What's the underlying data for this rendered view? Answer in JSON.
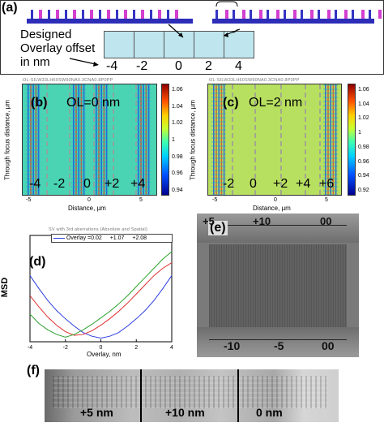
{
  "panel_a": {
    "label": "(a)",
    "caption_lines": [
      "Designed",
      "Overlay offset",
      "in nm"
    ],
    "offsets": [
      "-4",
      "-2",
      "0",
      "2",
      "4"
    ],
    "colors": {
      "bar": "#2d2db8",
      "pillar_blue": "#3434c4",
      "pillar_magenta": "#d43fd0",
      "box": "#bfe6ee"
    }
  },
  "panel_b": {
    "label": "(b)",
    "annotation": "OL=0 nm",
    "header_text": "OL-SILW33LH60SW90NA0.3CNA0.8P0PP",
    "region_labels": [
      "-4",
      "-2",
      "0",
      "+2",
      "+4"
    ],
    "ylabel": "Through focus distance, µm",
    "xlabel": "Distance, µm",
    "xticks": [
      "-5",
      "0",
      "5"
    ],
    "colorbar_ticks": [
      "1.06",
      "1.04",
      "1.02",
      "1",
      "0.98",
      "0.96",
      "0.94"
    ]
  },
  "panel_c": {
    "label": "(c)",
    "annotation": "OL=2 nm",
    "header_text": "OL-SILW33LH60SW90NA0.3CNA0.8P0PP",
    "region_labels": [
      "-2",
      "0",
      "+2",
      "+4",
      "+6"
    ],
    "ylabel": "Through focus distance, µm",
    "xlabel": "Distance, µm",
    "xticks": [
      "-5",
      "0",
      "5"
    ],
    "colorbar_ticks": [
      "1.06",
      "1.04",
      "1.02",
      "1",
      "0.98",
      "0.96",
      "0.94",
      "0.92"
    ]
  },
  "panel_d": {
    "label": "(d)",
    "faint_title": "SV with 3rd aberrations (Absolute and Spatial)"
  },
  "panel_e": {
    "label": "(e)",
    "top_labels": [
      "+5",
      "+10",
      "00"
    ],
    "bottom_labels": [
      "-10",
      "-5",
      "00"
    ]
  },
  "panel_f": {
    "label": "(f)",
    "labels": [
      "+5 nm",
      "+10 nm",
      "0 nm"
    ]
  },
  "chart_data": {
    "type": "line",
    "title": "",
    "xlabel": "Overlay, nm",
    "ylabel": "MSD",
    "xlim": [
      -4,
      4
    ],
    "xticks": [
      -4,
      -2,
      0,
      2,
      4
    ],
    "legend_placement": "top",
    "series": [
      {
        "name": "Overlay =0.02",
        "color": "#2c3ee0",
        "x": [
          -4,
          -3.5,
          -3,
          -2.5,
          -2,
          -1.5,
          -1,
          -0.5,
          0,
          0.5,
          1,
          1.5,
          2,
          2.5,
          3,
          3.5,
          4
        ],
        "y": [
          0.72,
          0.58,
          0.45,
          0.34,
          0.25,
          0.17,
          0.1,
          0.06,
          0.04,
          0.06,
          0.1,
          0.17,
          0.25,
          0.34,
          0.45,
          0.58,
          0.72
        ]
      },
      {
        "name": "+1.07",
        "color": "#e03030",
        "x": [
          -4,
          -3.5,
          -3,
          -2.5,
          -2,
          -1.5,
          -1,
          -0.5,
          0,
          0.5,
          1,
          1.5,
          2,
          2.5,
          3,
          3.5,
          4
        ],
        "y": [
          0.5,
          0.38,
          0.27,
          0.18,
          0.11,
          0.07,
          0.08,
          0.12,
          0.18,
          0.25,
          0.33,
          0.42,
          0.52,
          0.62,
          0.72,
          0.8,
          0.86
        ]
      },
      {
        "name": "+2.08",
        "color": "#2ca02c",
        "x": [
          -4,
          -3.5,
          -3,
          -2.5,
          -2,
          -1.5,
          -1,
          -0.5,
          0,
          0.5,
          1,
          1.5,
          2,
          2.5,
          3,
          3.5,
          4
        ],
        "y": [
          0.3,
          0.2,
          0.13,
          0.08,
          0.05,
          0.08,
          0.13,
          0.19,
          0.26,
          0.33,
          0.41,
          0.5,
          0.6,
          0.7,
          0.8,
          0.9,
          0.98
        ]
      }
    ]
  }
}
